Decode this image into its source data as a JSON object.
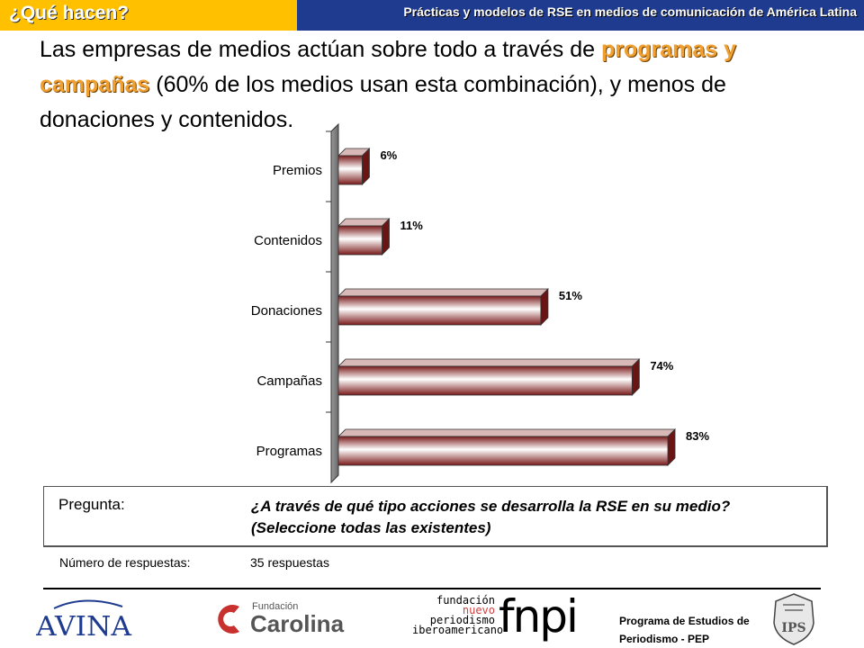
{
  "header": {
    "section_title": "¿Qué hacen?",
    "subtitle": "Prácticas y modelos de RSE en medios de comunicación de América Latina"
  },
  "headline": {
    "part1": "Las empresas de medios actúan sobre todo a través de ",
    "highlight1": "programas y",
    "highlight2": "campañas",
    "part2": " (60% de los medios usan esta combinación), y menos de donaciones y contenidos."
  },
  "chart_data": {
    "type": "bar",
    "orientation": "horizontal",
    "title": "",
    "xlabel": "",
    "ylabel": "",
    "xlim": [
      0,
      100
    ],
    "categories": [
      "Premios",
      "Contenidos",
      "Donaciones",
      "Campañas",
      "Programas"
    ],
    "values": [
      6,
      11,
      51,
      74,
      83
    ],
    "data_labels": [
      "6%",
      "11%",
      "51%",
      "74%",
      "83%"
    ],
    "bar_color": "#7a1a1a",
    "grid": false,
    "legend": "none"
  },
  "question": {
    "label": "Pregunta:",
    "text": "¿A través de qué tipo acciones se desarrolla la RSE en su medio? (Seleccione todas las existentes)"
  },
  "responses": {
    "label": "Número de respuestas:",
    "value": "35 respuestas"
  },
  "footer": {
    "avina_logo": "AVINA",
    "fundacion_small": "Fundación",
    "fundacion_big": "Carolina",
    "fnpi_line1": "fundación",
    "fnpi_line2": "nuevo",
    "fnpi_line3": "periodismo",
    "fnpi_line4": "iberoamericano",
    "fnpi_logo": "fnpi",
    "pep_line1": "Programa de Estudios de",
    "pep_line2": "Periodismo - PEP",
    "crest_text": "IPS"
  }
}
